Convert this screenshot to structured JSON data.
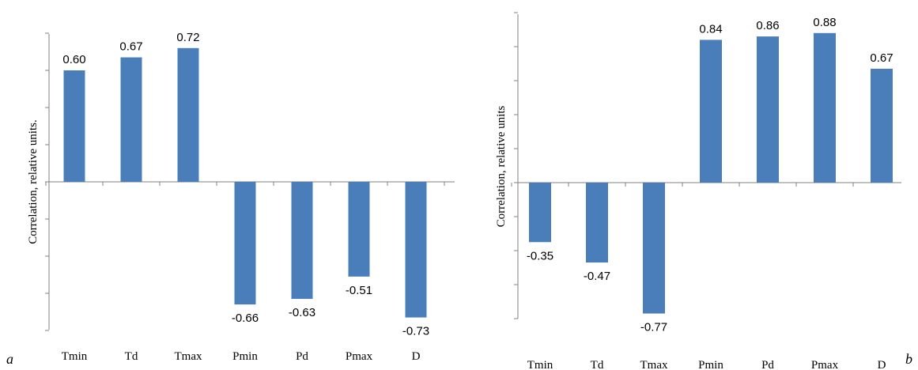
{
  "chart_data": [
    {
      "type": "bar",
      "panel": "a",
      "categories": [
        "Tmin",
        "Td",
        "Tmax",
        "Pmin",
        "Pd",
        "Pmax",
        "D"
      ],
      "values": [
        0.6,
        0.67,
        0.72,
        -0.66,
        -0.63,
        -0.51,
        -0.73
      ],
      "value_labels": [
        "0.60",
        "0.67",
        "0.72",
        "-0.66",
        "-0.63",
        "-0.51",
        "-0.73"
      ],
      "ylabel": "Correlation, relative units.",
      "ylim": [
        -0.8,
        0.8
      ],
      "ytick_step": 0.2,
      "grid": false,
      "bar_color": "#4a7ebb"
    },
    {
      "type": "bar",
      "panel": "b",
      "categories": [
        "Tmin",
        "Td",
        "Tmax",
        "Pmin",
        "Pd",
        "Pmax",
        "D"
      ],
      "values": [
        -0.35,
        -0.47,
        -0.77,
        0.84,
        0.86,
        0.88,
        0.67
      ],
      "value_labels": [
        "-0.35",
        "-0.47",
        "-0.77",
        "0.84",
        "0.86",
        "0.88",
        "0.67"
      ],
      "ylabel": "Correlation, relative units",
      "ylim": [
        -0.8,
        1.0
      ],
      "ytick_step": 0.2,
      "grid": false,
      "bar_color": "#4a7ebb"
    }
  ],
  "panel_labels": {
    "a": "a",
    "b": "b"
  }
}
